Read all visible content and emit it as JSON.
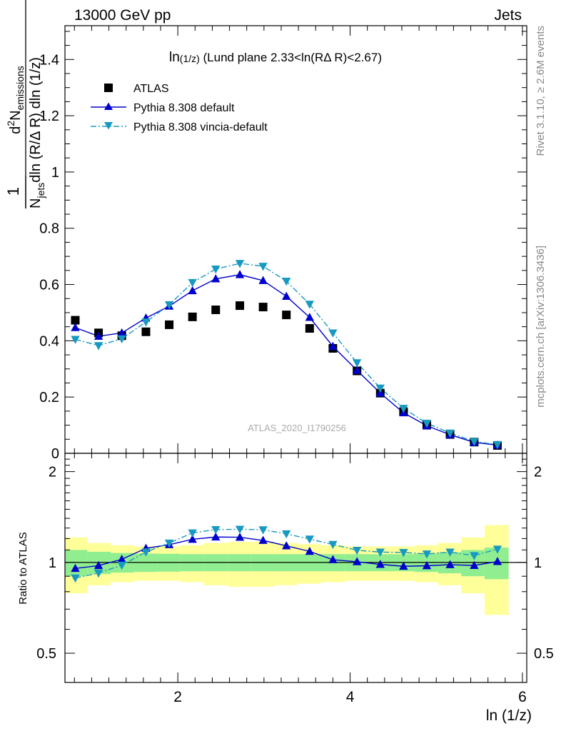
{
  "header": {
    "left": "13000 GeV pp",
    "right": "Jets"
  },
  "side_labels": {
    "upper": "Rivet 3.1.10, ≥ 2.6M events",
    "lower": "mcplots.cern.ch [arXiv:1306.3436]"
  },
  "chart_data": [
    {
      "type": "scatter",
      "title": "ln(1/z) (Lund plane 2.33<ln(RΔ R)<2.67)",
      "title_parts": {
        "func": "ln",
        "arg": "(1/z)",
        "rest": " (Lund plane 2.33<ln(RΔ R)<2.67)"
      },
      "xlabel": "ln (1/z)",
      "ylabel": "1/N_jets d²N_emissions / dln(R/ΔR) dln(1/z)",
      "ylabel_parts": {
        "one": "1",
        "N": "N",
        "jets": "jets",
        "dln": "dln (R/Δ R) dln (1/z)",
        "d": "d",
        "sq": "2",
        "N2": "N",
        "emissions": "emissions"
      },
      "xlim": [
        0.69,
        6.05
      ],
      "ylim": [
        0,
        1.52
      ],
      "yticks": [
        0,
        0.2,
        0.4,
        0.6,
        0.8,
        1,
        1.2,
        1.4
      ],
      "ytick_labels": [
        "0",
        "0.2",
        "0.4",
        "0.6",
        "0.8",
        "1",
        "1.2",
        "1.4"
      ],
      "watermark": "ATLAS_2020_I1790256",
      "legend_position": "top-left",
      "x": [
        0.81,
        1.08,
        1.35,
        1.63,
        1.9,
        2.17,
        2.44,
        2.72,
        2.99,
        3.26,
        3.53,
        3.8,
        4.08,
        4.35,
        4.62,
        4.89,
        5.16,
        5.44,
        5.71
      ],
      "series": [
        {
          "name": "ATLAS",
          "marker": "square",
          "color": "#000000",
          "values": [
            0.473,
            0.428,
            0.418,
            0.432,
            0.457,
            0.485,
            0.51,
            0.525,
            0.52,
            0.492,
            0.444,
            0.373,
            0.293,
            0.214,
            0.148,
            0.1,
            0.067,
            0.04,
            0.028
          ]
        },
        {
          "name": "Pythia 8.308 default",
          "marker": "triangle-up",
          "color": "#0000cc",
          "line": "solid",
          "values": [
            0.447,
            0.416,
            0.428,
            0.481,
            0.523,
            0.578,
            0.62,
            0.635,
            0.614,
            0.558,
            0.483,
            0.38,
            0.295,
            0.214,
            0.144,
            0.098,
            0.066,
            0.039,
            0.029
          ]
        },
        {
          "name": "Pythia 8.308 vincia-default",
          "marker": "triangle-down",
          "color": "#1899c1",
          "line": "dashdot",
          "values": [
            0.405,
            0.383,
            0.407,
            0.467,
            0.528,
            0.607,
            0.655,
            0.675,
            0.665,
            0.612,
            0.53,
            0.428,
            0.322,
            0.232,
            0.16,
            0.107,
            0.072,
            0.042,
            0.031
          ]
        }
      ]
    },
    {
      "type": "scatter",
      "ylabel": "Ratio to ATLAS",
      "ylim": [
        0.4,
        2.3
      ],
      "yticks": [
        0.5,
        1,
        2
      ],
      "ytick_labels": [
        "0.5",
        "1",
        "2"
      ],
      "xticks": [
        2,
        4,
        6
      ],
      "xtick_labels": [
        "2",
        "4",
        "6"
      ],
      "bin_edges": [
        0.69,
        0.95,
        1.22,
        1.49,
        1.76,
        2.03,
        2.3,
        2.58,
        2.85,
        3.12,
        3.39,
        3.66,
        3.94,
        4.21,
        4.48,
        4.75,
        5.02,
        5.29,
        5.56,
        5.84
      ],
      "band_inner": {
        "color": "#90ee90",
        "half_width": [
          0.1,
          0.085,
          0.075,
          0.07,
          0.068,
          0.065,
          0.065,
          0.065,
          0.065,
          0.065,
          0.065,
          0.065,
          0.065,
          0.065,
          0.065,
          0.07,
          0.08,
          0.1,
          0.12
        ]
      },
      "band_outer": {
        "color": "#ffff99",
        "half_width": [
          0.21,
          0.16,
          0.14,
          0.13,
          0.13,
          0.14,
          0.16,
          0.17,
          0.17,
          0.16,
          0.15,
          0.14,
          0.13,
          0.13,
          0.13,
          0.14,
          0.16,
          0.21,
          0.33
        ]
      },
      "series": [
        {
          "name": "Pythia 8.308 default",
          "values": [
            0.955,
            0.976,
            1.024,
            1.114,
            1.145,
            1.193,
            1.214,
            1.212,
            1.183,
            1.135,
            1.088,
            1.021,
            1.005,
            0.985,
            0.971,
            0.975,
            0.983,
            0.977,
            1.007
          ]
        },
        {
          "name": "Pythia 8.308 vincia-default",
          "values": [
            0.888,
            0.922,
            0.979,
            1.083,
            1.159,
            1.253,
            1.285,
            1.288,
            1.283,
            1.244,
            1.195,
            1.147,
            1.097,
            1.082,
            1.079,
            1.067,
            1.082,
            1.054,
            1.107
          ]
        }
      ]
    }
  ]
}
